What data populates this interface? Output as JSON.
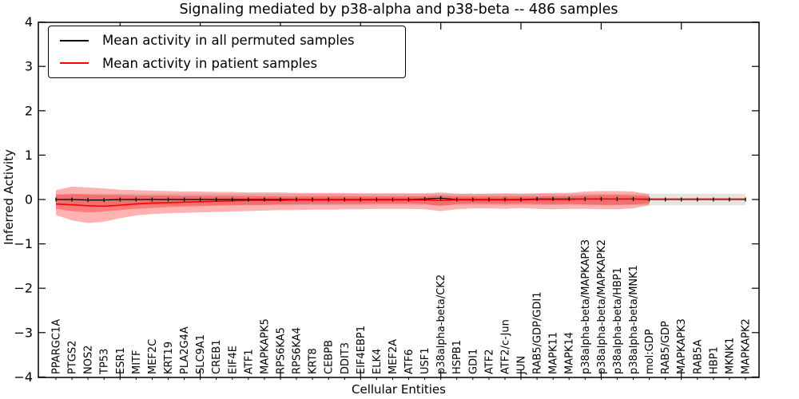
{
  "figure": {
    "title": "Signaling mediated by p38-alpha and p38-beta -- 486 samples",
    "xlabel": "Cellular Entities",
    "ylabel": "Inferred Activity",
    "background_color": "#ffffff"
  },
  "chart_data": {
    "type": "line",
    "title": "Signaling mediated by p38-alpha and p38-beta -- 486 samples",
    "xlabel": "Cellular Entities",
    "ylabel": "Inferred Activity",
    "ylim": [
      -4,
      4
    ],
    "yticks": [
      4,
      3,
      2,
      1,
      0,
      -1,
      -2,
      -3,
      -4
    ],
    "ytick_labels": [
      "4",
      "3",
      "2",
      "1",
      "0",
      "−1",
      "−2",
      "−3",
      "−4"
    ],
    "grid": false,
    "legend_position": "upper left",
    "categories": [
      "PPARGC1A",
      "PTGS2",
      "NOS2",
      "TP53",
      "ESR1",
      "MITF",
      "MEF2C",
      "KRT19",
      "PLA2G4A",
      "SLC9A1",
      "CREB1",
      "EIF4E",
      "ATF1",
      "MAPKAPK5",
      "RPS6KA5",
      "RPS6KA4",
      "KRT8",
      "CEBPB",
      "DDIT3",
      "EIF4EBP1",
      "ELK4",
      "MEF2A",
      "ATF6",
      "USF1",
      "p38alpha-beta/CK2",
      "HSPB1",
      "GDI1",
      "ATF2",
      "ATF2/c-Jun",
      "JUN",
      "RAB5/GDP/GDI1",
      "MAPK11",
      "MAPK14",
      "p38alpha-beta/MAPKAPK3",
      "p38alpha-beta/MAPKAPK2",
      "p38alpha-beta/HBP1",
      "p38alpha-beta/MNK1",
      "mol:GDP",
      "RAB5/GDP",
      "MAPKAPK3",
      "RAB5A",
      "HBP1",
      "MKNK1",
      "MAPKAPK2"
    ],
    "series": [
      {
        "name": "Mean activity in all permuted samples",
        "color": "#000000",
        "line_width": 1.2,
        "marker": "tick",
        "values": [
          0,
          0,
          -0.01,
          -0.01,
          0,
          0,
          0,
          0,
          0,
          0,
          0,
          0,
          0,
          0,
          0,
          0,
          0,
          0,
          0,
          0,
          0,
          0,
          0,
          0.01,
          0.03,
          0,
          0,
          0,
          0,
          0,
          0.01,
          0.01,
          0.01,
          0.01,
          0.01,
          0.01,
          0.01,
          0,
          0,
          0,
          0,
          0,
          0,
          0
        ]
      },
      {
        "name": "Mean activity in patient samples",
        "color": "#ff0000",
        "line_width": 1.6,
        "marker": "none",
        "values": [
          -0.1,
          -0.12,
          -0.14,
          -0.15,
          -0.13,
          -0.1,
          -0.08,
          -0.07,
          -0.06,
          -0.05,
          -0.04,
          -0.03,
          -0.02,
          -0.02,
          -0.02,
          -0.01,
          -0.01,
          -0.01,
          -0.01,
          -0.01,
          -0.01,
          -0.01,
          -0.01,
          -0.01,
          -0.02,
          -0.01,
          -0.01,
          -0.01,
          -0.01,
          -0.01,
          0,
          0,
          0,
          0.01,
          0.01,
          0.01,
          0.01,
          0.01,
          0.01,
          0.01,
          0.01,
          0.01,
          0.01,
          0.01
        ]
      }
    ],
    "bands": [
      {
        "name": "permuted-activity-range-band",
        "color": "#bbbbbb",
        "opacity": 0.4,
        "upper": [
          0.13,
          0.13,
          0.13,
          0.13,
          0.13,
          0.13,
          0.13,
          0.13,
          0.13,
          0.13,
          0.13,
          0.13,
          0.13,
          0.13,
          0.13,
          0.13,
          0.13,
          0.13,
          0.13,
          0.13,
          0.13,
          0.13,
          0.13,
          0.13,
          0.13,
          0.13,
          0.13,
          0.13,
          0.13,
          0.13,
          0.13,
          0.13,
          0.13,
          0.13,
          0.13,
          0.13,
          0.13,
          0.13,
          0.13,
          0.13,
          0.13,
          0.13,
          0.13,
          0.13
        ],
        "lower": [
          -0.13,
          -0.13,
          -0.13,
          -0.13,
          -0.13,
          -0.13,
          -0.13,
          -0.13,
          -0.13,
          -0.13,
          -0.13,
          -0.13,
          -0.13,
          -0.13,
          -0.13,
          -0.13,
          -0.13,
          -0.13,
          -0.13,
          -0.13,
          -0.13,
          -0.13,
          -0.13,
          -0.13,
          -0.13,
          -0.13,
          -0.13,
          -0.13,
          -0.13,
          -0.13,
          -0.13,
          -0.13,
          -0.13,
          -0.13,
          -0.13,
          -0.13,
          -0.13,
          -0.13,
          -0.13,
          -0.13,
          -0.13,
          -0.13,
          -0.13,
          -0.13
        ]
      },
      {
        "name": "patient-activity-outer-band",
        "color": "#ff0000",
        "opacity": 0.3,
        "upper": [
          0.21,
          0.29,
          0.27,
          0.25,
          0.22,
          0.21,
          0.2,
          0.19,
          0.18,
          0.18,
          0.17,
          0.17,
          0.16,
          0.16,
          0.16,
          0.15,
          0.15,
          0.15,
          0.15,
          0.14,
          0.14,
          0.14,
          0.14,
          0.14,
          0.16,
          0.13,
          0.13,
          0.13,
          0.14,
          0.13,
          0.14,
          0.15,
          0.15,
          0.18,
          0.19,
          0.19,
          0.18,
          0.12,
          null,
          null,
          null,
          null,
          null,
          null
        ],
        "lower": [
          -0.35,
          -0.47,
          -0.53,
          -0.5,
          -0.42,
          -0.36,
          -0.33,
          -0.31,
          -0.3,
          -0.29,
          -0.28,
          -0.27,
          -0.26,
          -0.25,
          -0.24,
          -0.24,
          -0.23,
          -0.23,
          -0.22,
          -0.22,
          -0.21,
          -0.21,
          -0.21,
          -0.22,
          -0.26,
          -0.22,
          -0.2,
          -0.2,
          -0.21,
          -0.19,
          -0.21,
          -0.22,
          -0.21,
          -0.21,
          -0.22,
          -0.22,
          -0.2,
          -0.13,
          null,
          null,
          null,
          null,
          null,
          null
        ]
      },
      {
        "name": "patient-activity-inner-band",
        "color": "#ff0000",
        "opacity": 0.3,
        "upper": [
          0.1,
          0.12,
          0.11,
          0.1,
          0.1,
          0.09,
          0.09,
          0.09,
          0.08,
          0.08,
          0.08,
          0.08,
          0.08,
          0.07,
          0.07,
          0.07,
          0.07,
          0.07,
          0.07,
          0.07,
          0.07,
          0.07,
          0.07,
          0.07,
          0.09,
          0.07,
          0.07,
          0.07,
          0.07,
          0.07,
          0.07,
          0.08,
          0.08,
          0.09,
          0.1,
          0.1,
          0.09,
          0.08,
          null,
          null,
          null,
          null,
          null,
          null
        ],
        "lower": [
          -0.21,
          -0.26,
          -0.29,
          -0.27,
          -0.24,
          -0.21,
          -0.19,
          -0.17,
          -0.16,
          -0.15,
          -0.14,
          -0.13,
          -0.12,
          -0.12,
          -0.11,
          -0.11,
          -0.1,
          -0.1,
          -0.1,
          -0.1,
          -0.09,
          -0.09,
          -0.09,
          -0.1,
          -0.15,
          -0.1,
          -0.09,
          -0.09,
          -0.1,
          -0.09,
          -0.1,
          -0.11,
          -0.1,
          -0.11,
          -0.12,
          -0.12,
          -0.11,
          -0.09,
          null,
          null,
          null,
          null,
          null,
          null
        ]
      }
    ]
  }
}
